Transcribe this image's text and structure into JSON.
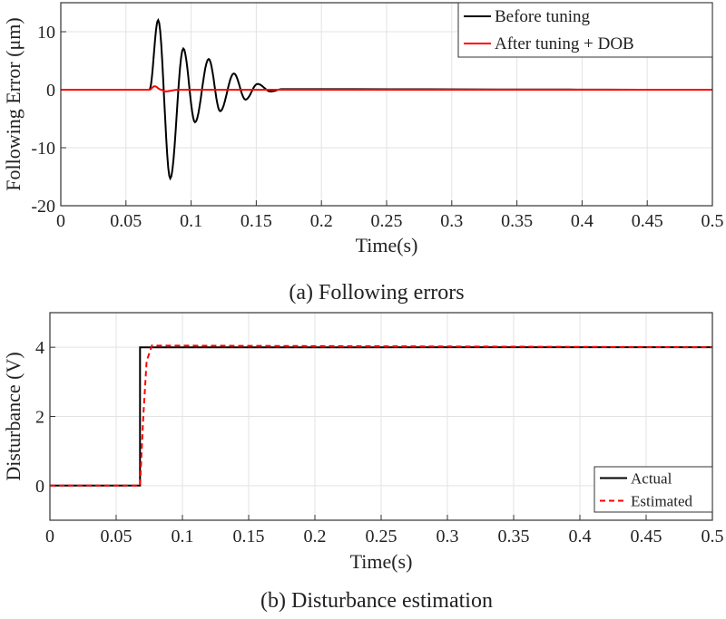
{
  "chart_data": [
    {
      "type": "line",
      "caption": "(a) Following errors",
      "xlabel": "Time(s)",
      "ylabel": "Following Error (μm)",
      "xlim": [
        0,
        0.5
      ],
      "ylim": [
        -20,
        15
      ],
      "xticks": [
        0,
        0.05,
        0.1,
        0.15,
        0.2,
        0.25,
        0.3,
        0.35,
        0.4,
        0.45,
        0.5
      ],
      "xtick_labels": [
        "0",
        "0.05",
        "0.1",
        "0.15",
        "0.2",
        "0.25",
        "0.3",
        "0.35",
        "0.4",
        "0.45",
        "0.5"
      ],
      "yticks": [
        10,
        0,
        -10,
        -20
      ],
      "ytick_labels": [
        "10",
        "0",
        "-10",
        "-20"
      ],
      "grid": true,
      "legend_position": "top-right",
      "series": [
        {
          "name": "Before tuning",
          "color": "#000000",
          "style": "solid",
          "points": [
            [
              0,
              0
            ],
            [
              0.068,
              0
            ],
            [
              0.0747,
              12
            ],
            [
              0.084,
              -15.3
            ],
            [
              0.094,
              7.1
            ],
            [
              0.103,
              -5.6
            ],
            [
              0.1135,
              5.3
            ],
            [
              0.1223,
              -3.7
            ],
            [
              0.1328,
              2.8
            ],
            [
              0.1418,
              -1.7
            ],
            [
              0.151,
              1.0
            ],
            [
              0.161,
              -0.3
            ],
            [
              0.17,
              0.1
            ],
            [
              0.5,
              0
            ]
          ]
        },
        {
          "name": "After tuning + DOB",
          "color": "#ff0000",
          "style": "solid",
          "points": [
            [
              0,
              0
            ],
            [
              0.068,
              0
            ],
            [
              0.072,
              0.6
            ],
            [
              0.077,
              0
            ],
            [
              0.08,
              -0.3
            ],
            [
              0.09,
              0
            ],
            [
              0.5,
              0
            ]
          ]
        }
      ]
    },
    {
      "type": "line",
      "caption": "(b) Disturbance estimation",
      "xlabel": "Time(s)",
      "ylabel": "Disturbance (V)",
      "xlim": [
        0,
        0.5
      ],
      "ylim": [
        -1,
        5
      ],
      "xticks": [
        0,
        0.05,
        0.1,
        0.15,
        0.2,
        0.25,
        0.3,
        0.35,
        0.4,
        0.45,
        0.5
      ],
      "xtick_labels": [
        "0",
        "0.05",
        "0.1",
        "0.15",
        "0.2",
        "0.25",
        "0.3",
        "0.35",
        "0.4",
        "0.45",
        "0.5"
      ],
      "yticks": [
        0,
        2,
        4
      ],
      "ytick_labels": [
        "0",
        "2",
        "4"
      ],
      "grid": true,
      "legend_position": "bottom-right",
      "series": [
        {
          "name": "Actual",
          "color": "#000000",
          "style": "solid",
          "points": [
            [
              0,
              0
            ],
            [
              0.068,
              0
            ],
            [
              0.068,
              4
            ],
            [
              0.5,
              4
            ]
          ]
        },
        {
          "name": "Estimated",
          "color": "#ff0000",
          "style": "dashed",
          "points": [
            [
              0,
              0
            ],
            [
              0.068,
              0
            ],
            [
              0.0705,
              2
            ],
            [
              0.073,
              3.6
            ],
            [
              0.077,
              4.05
            ],
            [
              0.5,
              4
            ]
          ]
        }
      ]
    }
  ]
}
